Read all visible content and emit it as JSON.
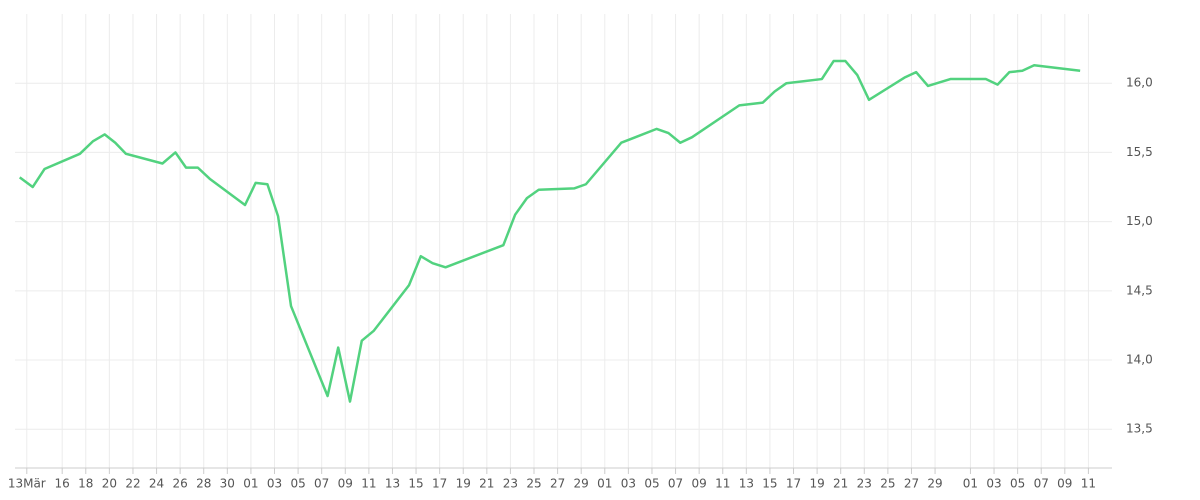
{
  "chart_data": {
    "type": "line",
    "x": [
      -0.6,
      0.5,
      1.5,
      4.5,
      5.6,
      6.6,
      7.5,
      8.4,
      11.5,
      12.6,
      13.5,
      14.5,
      15.5,
      18.5,
      19.4,
      20.4,
      21.3,
      22.4,
      25.5,
      26.4,
      27.4,
      28.4,
      29.4,
      32.4,
      33.4,
      34.4,
      35.5,
      40.4,
      41.4,
      42.4,
      43.4,
      46.4,
      47.4,
      50.4,
      53.4,
      54.4,
      55.4,
      56.4,
      60.4,
      62.4,
      63.4,
      64.4,
      67.4,
      68.4,
      69.4,
      70.4,
      71.4,
      74.4,
      75.4,
      76.4,
      78.3,
      81.3,
      82.3,
      83.3,
      84.4,
      85.4,
      89.3
    ],
    "series": [
      {
        "color": "#52d27f",
        "values": [
          15.32,
          15.25,
          15.38,
          15.49,
          15.58,
          15.63,
          15.57,
          15.49,
          15.42,
          15.5,
          15.39,
          15.39,
          15.31,
          15.12,
          15.28,
          15.27,
          15.04,
          14.39,
          13.74,
          14.09,
          13.7,
          14.14,
          14.21,
          14.54,
          14.75,
          14.7,
          14.67,
          14.83,
          15.05,
          15.17,
          15.23,
          15.24,
          15.27,
          15.57,
          15.67,
          15.64,
          15.57,
          15.61,
          15.84,
          15.86,
          15.94,
          16.0,
          16.03,
          16.16,
          16.16,
          16.06,
          15.88,
          16.04,
          16.08,
          15.98,
          16.03,
          16.03,
          15.99,
          16.08,
          16.09,
          16.13,
          16.09
        ]
      }
    ],
    "xlim": [
      -1,
      92
    ],
    "xticks": [
      {
        "value": 0,
        "label": "13Mär"
      },
      {
        "value": 3,
        "label": "16"
      },
      {
        "value": 5,
        "label": "18"
      },
      {
        "value": 7,
        "label": "20"
      },
      {
        "value": 9,
        "label": "22"
      },
      {
        "value": 11,
        "label": "24"
      },
      {
        "value": 13,
        "label": "26"
      },
      {
        "value": 15,
        "label": "28"
      },
      {
        "value": 17,
        "label": "30"
      },
      {
        "value": 19,
        "label": "01"
      },
      {
        "value": 21,
        "label": "03"
      },
      {
        "value": 23,
        "label": "05"
      },
      {
        "value": 25,
        "label": "07"
      },
      {
        "value": 27,
        "label": "09"
      },
      {
        "value": 29,
        "label": "11"
      },
      {
        "value": 31,
        "label": "13"
      },
      {
        "value": 33,
        "label": "15"
      },
      {
        "value": 35,
        "label": "17"
      },
      {
        "value": 37,
        "label": "19"
      },
      {
        "value": 39,
        "label": "21"
      },
      {
        "value": 41,
        "label": "23"
      },
      {
        "value": 43,
        "label": "25"
      },
      {
        "value": 45,
        "label": "27"
      },
      {
        "value": 47,
        "label": "29"
      },
      {
        "value": 49,
        "label": "01"
      },
      {
        "value": 51,
        "label": "03"
      },
      {
        "value": 53,
        "label": "05"
      },
      {
        "value": 55,
        "label": "07"
      },
      {
        "value": 57,
        "label": "09"
      },
      {
        "value": 59,
        "label": "11"
      },
      {
        "value": 61,
        "label": "13"
      },
      {
        "value": 63,
        "label": "15"
      },
      {
        "value": 65,
        "label": "17"
      },
      {
        "value": 67,
        "label": "19"
      },
      {
        "value": 69,
        "label": "21"
      },
      {
        "value": 71,
        "label": "23"
      },
      {
        "value": 73,
        "label": "25"
      },
      {
        "value": 75,
        "label": "27"
      },
      {
        "value": 77,
        "label": "29"
      },
      {
        "value": 80,
        "label": "01"
      },
      {
        "value": 82,
        "label": "03"
      },
      {
        "value": 84,
        "label": "05"
      },
      {
        "value": 86,
        "label": "07"
      },
      {
        "value": 88,
        "label": "09"
      },
      {
        "value": 90,
        "label": "11"
      }
    ],
    "ylim": [
      13.22,
      16.5
    ],
    "yticks": [
      {
        "value": 13.5,
        "label": "13,5"
      },
      {
        "value": 14.0,
        "label": "14,0"
      },
      {
        "value": 14.5,
        "label": "14,5"
      },
      {
        "value": 15.0,
        "label": "15,0"
      },
      {
        "value": 15.5,
        "label": "15,5"
      },
      {
        "value": 16.0,
        "label": "16,0"
      }
    ],
    "grid": true
  }
}
